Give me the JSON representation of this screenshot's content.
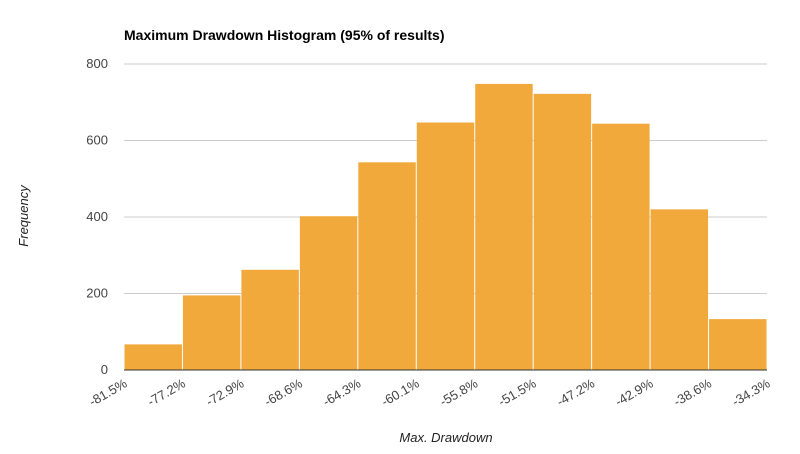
{
  "chart_data": {
    "type": "bar",
    "title": "Maximum Drawdown Histogram (95% of results)",
    "xlabel": "Max. Drawdown",
    "ylabel": "Frequency",
    "x_ticks": [
      "-81.5%",
      "-77.2%",
      "-72.9%",
      "-68.6%",
      "-64.3%",
      "-60.1%",
      "-55.8%",
      "-51.5%",
      "-47.2%",
      "-42.9%",
      "-38.6%",
      "-34.3%"
    ],
    "values": [
      67,
      195,
      262,
      402,
      543,
      647,
      748,
      722,
      644,
      420,
      133
    ],
    "y_ticks": [
      "0",
      "200",
      "400",
      "600",
      "800"
    ],
    "ylim": [
      0,
      800
    ],
    "grid": true,
    "legend": "none",
    "bar_color": "#f2a93b"
  }
}
